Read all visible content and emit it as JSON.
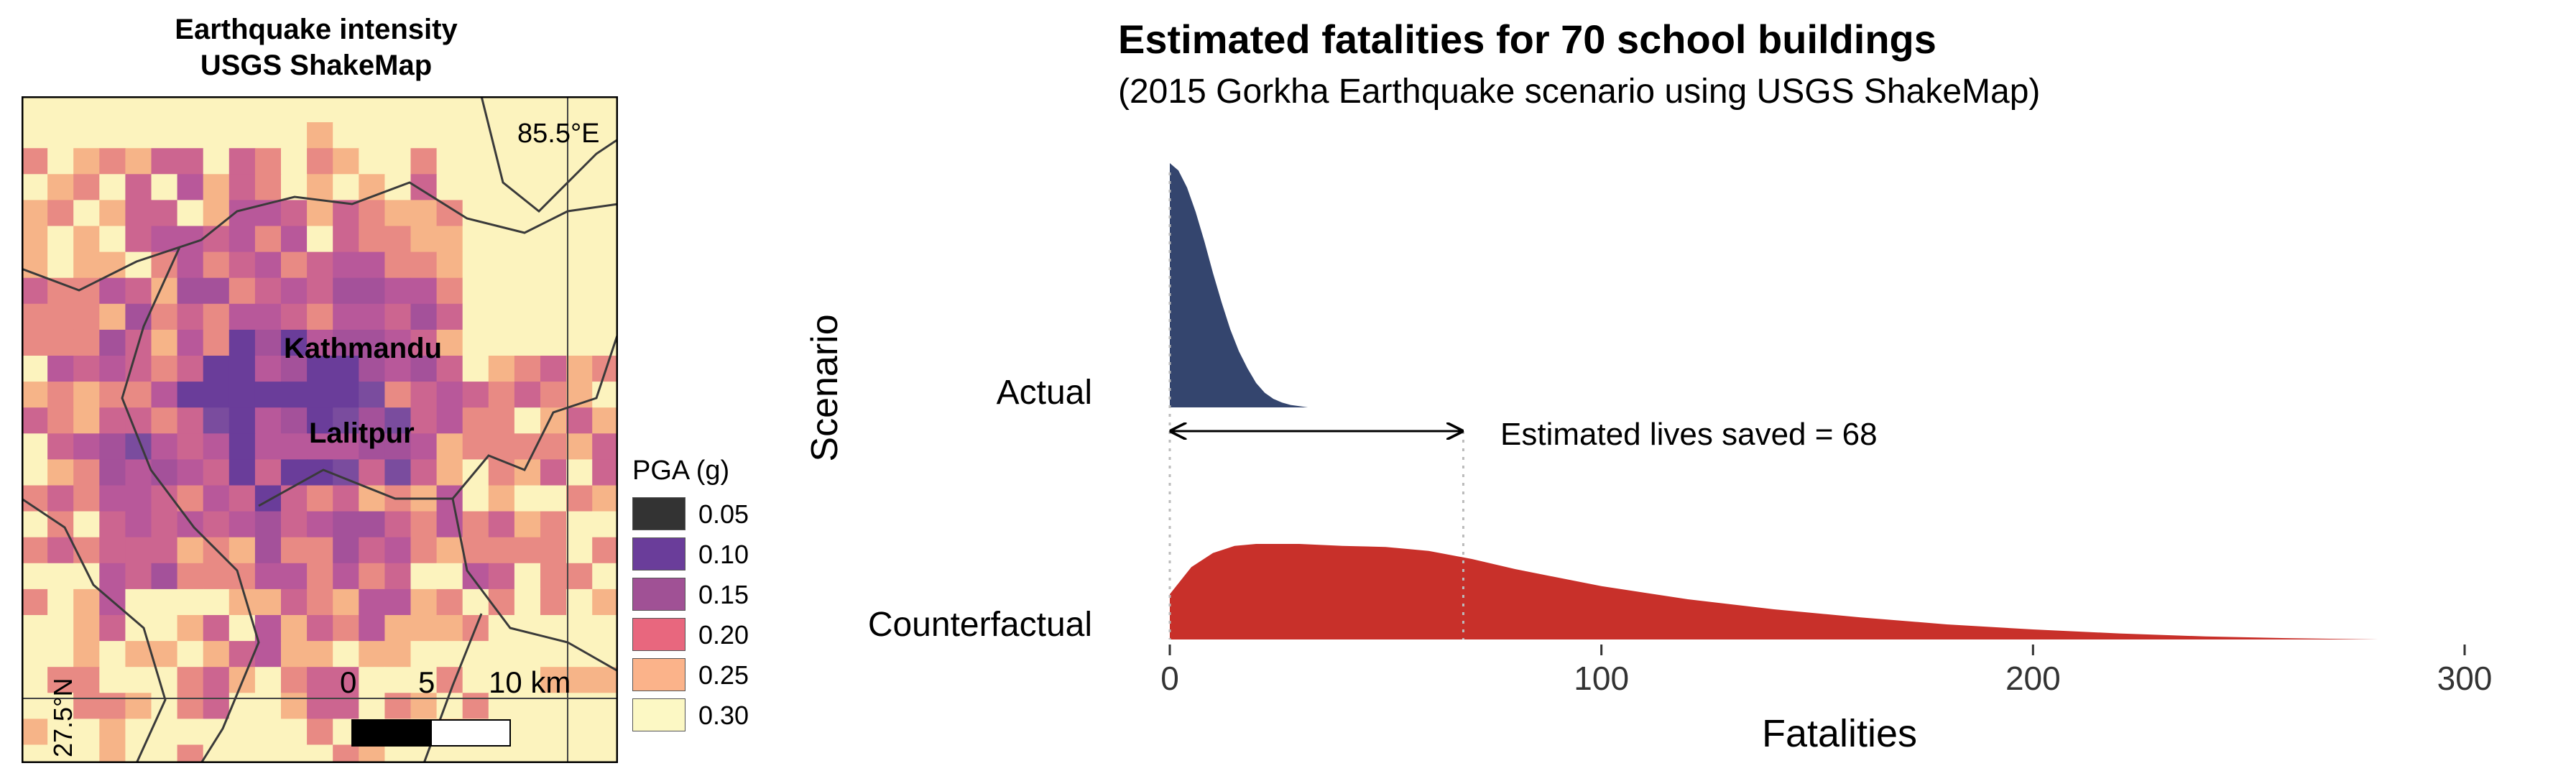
{
  "map": {
    "title_line1": "Earthquake intensity",
    "title_line2": "USGS ShakeMap",
    "place_labels": [
      "Kathmandu",
      "Lalitpur"
    ],
    "lon_label": "85.5°E",
    "lat_label": "27.5°N",
    "scalebar": {
      "labels": [
        "0",
        "5",
        "10 km"
      ]
    },
    "legend": {
      "title": "PGA (g)",
      "items": [
        {
          "label": "0.05",
          "color": "#333333"
        },
        {
          "label": "0.10",
          "color": "#6a3d9a"
        },
        {
          "label": "0.15",
          "color": "#a05195"
        },
        {
          "label": "0.20",
          "color": "#e8677e"
        },
        {
          "label": "0.25",
          "color": "#fbb38a"
        },
        {
          "label": "0.30",
          "color": "#fcf8c4"
        }
      ]
    }
  },
  "chart_data": {
    "type": "area",
    "title": "Estimated fatalities for 70 school buildings",
    "subtitle": "(2015 Gorkha Earthquake scenario using USGS ShakeMap)",
    "xlabel": "Fatalities",
    "ylabel": "Scenario",
    "xlim": [
      0,
      300
    ],
    "xticks": [
      "0",
      "100",
      "200",
      "300"
    ],
    "categories": [
      "Actual",
      "Counterfactual"
    ],
    "series": [
      {
        "name": "Actual",
        "color": "#34456e",
        "x": [
          0,
          2,
          4,
          6,
          8,
          10,
          12,
          14,
          16,
          18,
          20,
          22,
          24,
          26,
          28,
          30,
          32
        ],
        "density": [
          1.0,
          0.97,
          0.9,
          0.8,
          0.68,
          0.55,
          0.43,
          0.32,
          0.23,
          0.16,
          0.1,
          0.06,
          0.035,
          0.02,
          0.01,
          0.005,
          0
        ]
      },
      {
        "name": "Counterfactual",
        "color": "#c8302a",
        "x": [
          0,
          5,
          10,
          15,
          20,
          30,
          40,
          50,
          60,
          70,
          80,
          100,
          120,
          140,
          160,
          180,
          200,
          220,
          240,
          260,
          280
        ],
        "density": [
          0.45,
          0.72,
          0.86,
          0.93,
          0.95,
          0.95,
          0.93,
          0.92,
          0.88,
          0.8,
          0.7,
          0.53,
          0.4,
          0.3,
          0.22,
          0.15,
          0.1,
          0.06,
          0.03,
          0.012,
          0
        ]
      }
    ],
    "annotation": {
      "text": "Estimated lives saved = 68",
      "from": 0,
      "to": 68
    }
  }
}
